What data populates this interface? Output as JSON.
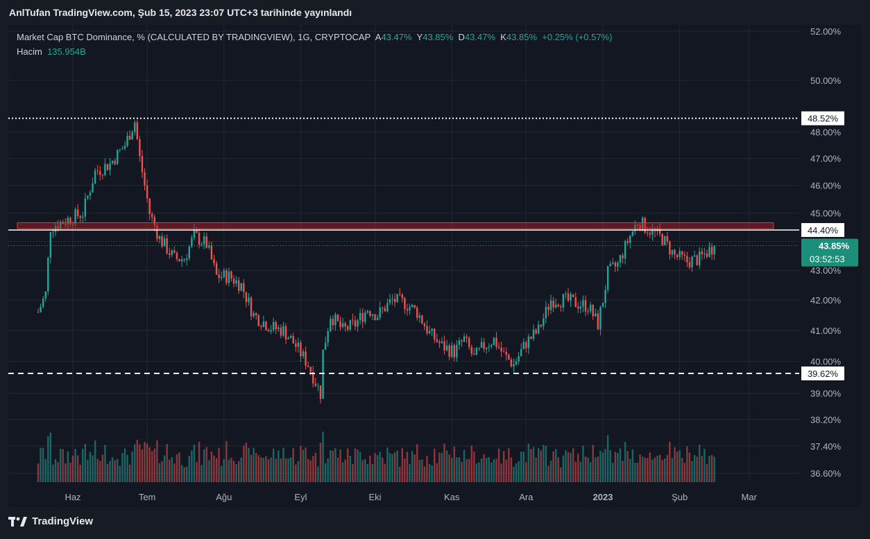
{
  "header": {
    "published": "AnlTufan TradingView.com, Şub 15, 2023 23:07 UTC+3 tarihinde yayınlandı"
  },
  "legend": {
    "series_title": "Market Cap BTC Dominance, % (CALCULATED BY TRADINGVIEW), 1G, CRYPTOCAP",
    "open_label": "A",
    "open_value": "43.47%",
    "high_label": "Y",
    "high_value": "43.85%",
    "low_label": "D",
    "low_value": "43.47%",
    "close_label": "K",
    "close_value": "43.85%",
    "change": "+0.25% (+0.57%)",
    "volume_label": "Hacim",
    "volume_value": "135.954B"
  },
  "price_labels": {
    "upper_line": "48.52%",
    "resistance_line": "44.40%",
    "lower_line": "39.62%",
    "current_price": "43.85%",
    "countdown": "03:52:53"
  },
  "footer": {
    "brand": "TradingView",
    "logo_icon": "tradingview-logo-icon"
  },
  "colors": {
    "up": "#26a69a",
    "down": "#ef5350",
    "bg": "#131722",
    "grid": "#232834",
    "zone_fill": "rgba(178,34,34,0.45)",
    "zone_border": "#e03a3a",
    "line": "#ffffff",
    "price_badge": "#1b8f7a"
  },
  "chart_data": {
    "type": "candlestick",
    "title": "Market Cap BTC Dominance, % (CALCULATED BY TRADINGVIEW), 1G, CRYPTOCAP",
    "scale": "log",
    "y_ticks": [
      36.6,
      37.4,
      38.2,
      39.0,
      40.0,
      41.0,
      42.0,
      43.0,
      44.0,
      45.0,
      46.0,
      47.0,
      48.0,
      50.0,
      52.0
    ],
    "y_tick_labels": [
      "36.60%",
      "37.40%",
      "38.20%",
      "39.00%",
      "40.00%",
      "41.00%",
      "42.00%",
      "43.00%",
      "44.00%",
      "45.00%",
      "46.00%",
      "47.00%",
      "48.00%",
      "50.00%",
      "52.00%"
    ],
    "x_tick_labels": [
      "Haz",
      "Tem",
      "Ağu",
      "Eyl",
      "Eki",
      "Kas",
      "Ara",
      "2023",
      "Şub",
      "Mar"
    ],
    "x_range": [
      "2022-05-17",
      "2023-02-15"
    ],
    "price_lines": [
      {
        "value": 48.52,
        "style": "dotted"
      },
      {
        "value": 44.4,
        "style": "solid"
      },
      {
        "value": 39.62,
        "style": "dashed"
      }
    ],
    "resistance_zone": {
      "from": 44.4,
      "to": 44.66
    },
    "current_price": 43.85,
    "volume_last": "135.954B",
    "close_path": [
      [
        "2022-05-18",
        41.6
      ],
      [
        "2022-05-21",
        42.2
      ],
      [
        "2022-05-23",
        44.5
      ],
      [
        "2022-05-28",
        44.7
      ],
      [
        "2022-06-05",
        45.0
      ],
      [
        "2022-06-10",
        46.5
      ],
      [
        "2022-06-16",
        46.8
      ],
      [
        "2022-06-22",
        47.5
      ],
      [
        "2022-06-26",
        48.4
      ],
      [
        "2022-06-28",
        47.0
      ],
      [
        "2022-07-02",
        45.0
      ],
      [
        "2022-07-06",
        44.1
      ],
      [
        "2022-07-12",
        43.4
      ],
      [
        "2022-07-16",
        43.4
      ],
      [
        "2022-07-20",
        44.2
      ],
      [
        "2022-07-25",
        43.9
      ],
      [
        "2022-07-29",
        42.8
      ],
      [
        "2022-08-03",
        42.8
      ],
      [
        "2022-08-08",
        42.5
      ],
      [
        "2022-08-13",
        41.5
      ],
      [
        "2022-08-20",
        41.1
      ],
      [
        "2022-08-25",
        41.0
      ],
      [
        "2022-08-30",
        40.5
      ],
      [
        "2022-09-04",
        39.9
      ],
      [
        "2022-09-09",
        39.0
      ],
      [
        "2022-09-10",
        40.3
      ],
      [
        "2022-09-13",
        41.5
      ],
      [
        "2022-09-18",
        41.0
      ],
      [
        "2022-09-23",
        41.2
      ],
      [
        "2022-09-28",
        41.7
      ],
      [
        "2022-10-02",
        41.5
      ],
      [
        "2022-10-08",
        42.0
      ],
      [
        "2022-10-13",
        41.9
      ],
      [
        "2022-10-18",
        41.6
      ],
      [
        "2022-10-23",
        40.9
      ],
      [
        "2022-10-28",
        40.5
      ],
      [
        "2022-11-02",
        40.3
      ],
      [
        "2022-11-06",
        40.7
      ],
      [
        "2022-11-10",
        40.1
      ],
      [
        "2022-11-14",
        40.5
      ],
      [
        "2022-11-18",
        40.7
      ],
      [
        "2022-11-22",
        40.2
      ],
      [
        "2022-11-26",
        39.9
      ],
      [
        "2022-12-01",
        40.6
      ],
      [
        "2022-12-06",
        41.0
      ],
      [
        "2022-12-11",
        42.0
      ],
      [
        "2022-12-16",
        42.0
      ],
      [
        "2022-12-21",
        41.9
      ],
      [
        "2022-12-26",
        41.8
      ],
      [
        "2022-12-30",
        41.2
      ],
      [
        "2023-01-01",
        42.0
      ],
      [
        "2023-01-03",
        42.9
      ],
      [
        "2023-01-07",
        43.2
      ],
      [
        "2023-01-12",
        44.2
      ],
      [
        "2023-01-15",
        44.7
      ],
      [
        "2023-01-20",
        44.4
      ],
      [
        "2023-01-25",
        44.1
      ],
      [
        "2023-01-30",
        43.5
      ],
      [
        "2023-02-04",
        43.3
      ],
      [
        "2023-02-09",
        43.4
      ],
      [
        "2023-02-15",
        43.85
      ]
    ]
  }
}
